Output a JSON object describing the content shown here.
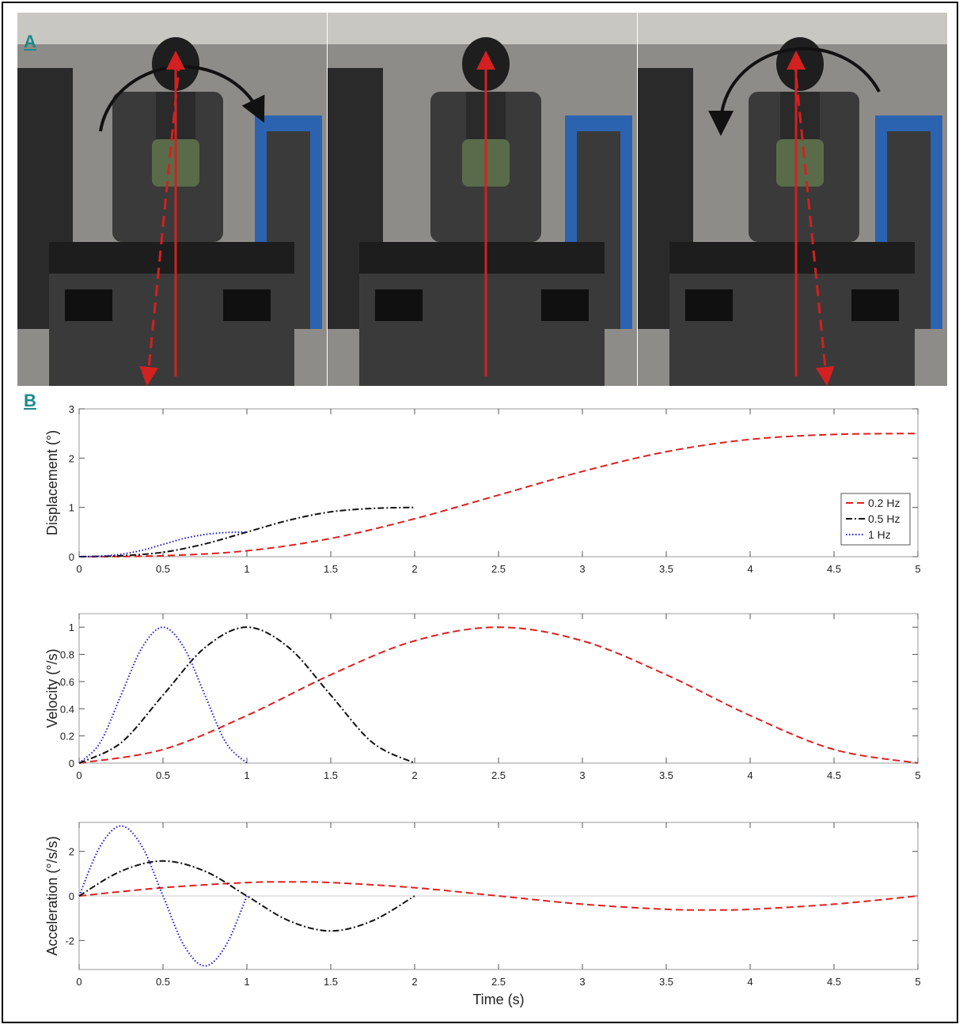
{
  "panels": {
    "a_label": "A",
    "b_label": "B"
  },
  "photos": {
    "count": 3,
    "rotation_arrows": [
      "clockwise",
      "none",
      "counterclockwise"
    ],
    "colors": {
      "arrow": "#d32020",
      "curved_arrow": "#111111",
      "wall": "#8c8a86",
      "cabinet": "#2b63b0"
    }
  },
  "chart_data": [
    {
      "type": "line",
      "ylabel": "Displacement (°)",
      "xlim": [
        0,
        5
      ],
      "ylim": [
        0,
        3
      ],
      "xticks": [
        "0",
        "0.5",
        "1",
        "1.5",
        "2",
        "2.5",
        "3",
        "3.5",
        "4",
        "4.5",
        "5"
      ],
      "yticks": [
        "0",
        "1",
        "2",
        "3"
      ],
      "legend": {
        "placement": "right",
        "entries": [
          "0.2 Hz",
          "0.5 Hz",
          "1 Hz"
        ]
      },
      "series": [
        {
          "name": "0.2 Hz",
          "color": "#e01e1e",
          "style": "dashed",
          "x": [
            0,
            0.5,
            1,
            1.5,
            2,
            2.5,
            3,
            3.5,
            4,
            4.5,
            5
          ],
          "y": [
            0,
            0.02,
            0.12,
            0.37,
            0.77,
            1.25,
            1.73,
            2.13,
            2.38,
            2.48,
            2.5
          ]
        },
        {
          "name": "0.5 Hz",
          "color": "#111111",
          "style": "dashdot",
          "x": [
            0,
            0.25,
            0.5,
            0.75,
            1,
            1.25,
            1.5,
            1.75,
            2
          ],
          "y": [
            0,
            0.02,
            0.09,
            0.26,
            0.5,
            0.74,
            0.91,
            0.98,
            1.0
          ]
        },
        {
          "name": "1 Hz",
          "color": "#1a1acc",
          "style": "dotted",
          "x": [
            0,
            0.125,
            0.25,
            0.375,
            0.5,
            0.625,
            0.75,
            0.875,
            1
          ],
          "y": [
            0,
            0.01,
            0.05,
            0.13,
            0.25,
            0.37,
            0.45,
            0.49,
            0.5
          ]
        }
      ]
    },
    {
      "type": "line",
      "ylabel": "Velocity (°/s)",
      "xlim": [
        0,
        5
      ],
      "ylim": [
        0,
        1.1
      ],
      "xticks": [
        "0",
        "0.5",
        "1",
        "1.5",
        "2",
        "2.5",
        "3",
        "3.5",
        "4",
        "4.5",
        "5"
      ],
      "yticks": [
        "0",
        "0.2",
        "0.4",
        "0.6",
        "0.8",
        "1"
      ],
      "series": [
        {
          "name": "0.2 Hz",
          "color": "#e01e1e",
          "style": "dashed",
          "x": [
            0,
            0.5,
            1,
            1.5,
            2,
            2.5,
            3,
            3.5,
            4,
            4.5,
            5
          ],
          "y": [
            0,
            0.1,
            0.35,
            0.65,
            0.9,
            1.0,
            0.9,
            0.65,
            0.35,
            0.1,
            0
          ]
        },
        {
          "name": "0.5 Hz",
          "color": "#111111",
          "style": "dashdot",
          "x": [
            0,
            0.25,
            0.5,
            0.75,
            1,
            1.25,
            1.5,
            1.75,
            2
          ],
          "y": [
            0,
            0.15,
            0.5,
            0.85,
            1.0,
            0.85,
            0.5,
            0.15,
            0
          ]
        },
        {
          "name": "1 Hz",
          "color": "#1a1acc",
          "style": "dotted",
          "x": [
            0,
            0.125,
            0.25,
            0.375,
            0.5,
            0.625,
            0.75,
            0.875,
            1
          ],
          "y": [
            0,
            0.15,
            0.5,
            0.85,
            1.0,
            0.85,
            0.5,
            0.15,
            0
          ]
        }
      ]
    },
    {
      "type": "line",
      "ylabel": "Acceleration (°/s/s)",
      "xlabel": "Time (s)",
      "xlim": [
        0,
        5
      ],
      "ylim": [
        -3.3,
        3.3
      ],
      "xticks": [
        "0",
        "0.5",
        "1",
        "1.5",
        "2",
        "2.5",
        "3",
        "3.5",
        "4",
        "4.5",
        "5"
      ],
      "yticks": [
        "-2",
        "0",
        "2"
      ],
      "zero_line": true,
      "series": [
        {
          "name": "0.2 Hz",
          "color": "#e01e1e",
          "style": "dashed",
          "x": [
            0,
            0.5,
            1,
            1.25,
            1.5,
            2,
            2.5,
            3,
            3.5,
            3.75,
            4,
            4.5,
            5
          ],
          "y": [
            0,
            0.37,
            0.6,
            0.63,
            0.6,
            0.37,
            0,
            -0.37,
            -0.6,
            -0.63,
            -0.6,
            -0.37,
            0
          ]
        },
        {
          "name": "0.5 Hz",
          "color": "#111111",
          "style": "dashdot",
          "x": [
            0,
            0.25,
            0.5,
            0.75,
            1,
            1.25,
            1.5,
            1.75,
            2
          ],
          "y": [
            0,
            1.11,
            1.57,
            1.11,
            0,
            -1.11,
            -1.57,
            -1.11,
            0
          ]
        },
        {
          "name": "1 Hz",
          "color": "#1a1acc",
          "style": "dotted",
          "x": [
            0,
            0.125,
            0.25,
            0.375,
            0.5,
            0.625,
            0.75,
            0.875,
            1
          ],
          "y": [
            0,
            2.22,
            3.14,
            2.22,
            0,
            -2.22,
            -3.14,
            -2.22,
            0
          ]
        }
      ]
    }
  ]
}
